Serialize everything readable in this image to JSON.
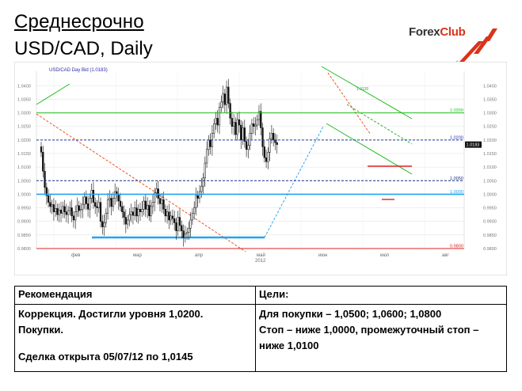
{
  "header": {
    "title": "Среднесрочно",
    "subtitle": "USD/CAD, Daily",
    "logo_text_part1": "Forex",
    "logo_text_part2": "Club"
  },
  "chart_data": {
    "type": "candlestick",
    "title": "USD/CAD Day Bid (1.0183)",
    "last_price": 1.0183,
    "ylim": [
      0.98,
      1.043
    ],
    "y_ticks": [
      1.04,
      1.035,
      1.03,
      1.025,
      1.02,
      1.015,
      1.01,
      1.005,
      1.0,
      0.995,
      0.99,
      0.985,
      0.98
    ],
    "y_tick_labels": [
      "1.0400",
      "1.0350",
      "1.0300",
      "1.0250",
      "1.0200",
      "1.0150",
      "1.0100",
      "1.0050",
      "1.0000",
      "0.9950",
      "0.9900",
      "0.9850",
      "0.9800"
    ],
    "x_labels": [
      "фев",
      "мар",
      "апр",
      "май",
      "июн",
      "июл",
      "авг"
    ],
    "x_label_sub": "2012",
    "levels": [
      {
        "value": 1.03,
        "label": "1.0300",
        "color": "#22bb22"
      },
      {
        "value": 1.02,
        "label": "1.0200",
        "color": "#2233aa"
      },
      {
        "value": 1.005,
        "label": "1.0050",
        "color": "#1b2c8a"
      },
      {
        "value": 1.0,
        "label": "1.0000",
        "color": "#22a4ee"
      },
      {
        "value": 0.98,
        "label": "0.9800",
        "color": "#dd2222"
      }
    ],
    "annotations": [
      "1.0183",
      "1.0120"
    ],
    "closes": [
      1.0155,
      1.0085,
      1.0025,
      0.9995,
      0.997,
      0.9955,
      0.9962,
      0.9935,
      0.9948,
      0.9925,
      0.9942,
      0.993,
      0.9955,
      0.9935,
      0.9925,
      0.994,
      0.995,
      0.992,
      0.9905,
      0.9935,
      0.9958,
      0.994,
      0.9945,
      0.9963,
      0.999,
      0.9965,
      0.9945,
      0.9985,
      1.0015,
      0.997,
      0.9955,
      0.995,
      0.997,
      0.99,
      0.988,
      0.9895,
      0.993,
      0.998,
      0.9985,
      0.9955,
      0.9985,
      1.001,
      1.0,
      0.9975,
      0.9955,
      0.9935,
      0.9915,
      0.989,
      0.9905,
      0.9925,
      0.9935,
      0.9922,
      0.995,
      0.992,
      0.9945,
      0.9935,
      0.9945,
      0.9975,
      0.9945,
      0.996,
      0.992,
      0.9955,
      0.997,
      1.0005,
      1.002,
      0.9985,
      0.9965,
      0.998,
      0.9945,
      0.992,
      0.9935,
      0.9905,
      0.992,
      0.991,
      0.9895,
      0.9865,
      0.9915,
      0.9885,
      0.9865,
      0.984,
      0.9855,
      0.986,
      0.9875,
      0.9905,
      0.993,
      0.995,
      0.9995,
      0.9985,
      1.001,
      1.003,
      1.006,
      1.0115,
      1.0165,
      1.02,
      1.0175,
      1.0225,
      1.026,
      1.028,
      1.0255,
      1.032,
      1.034,
      1.037,
      1.033,
      1.0395,
      1.0335,
      1.028,
      1.025,
      1.0265,
      1.022,
      1.0275,
      1.0255,
      1.02,
      1.0245,
      1.0195,
      1.0165,
      1.018,
      1.0225,
      1.026,
      1.025,
      1.0255,
      1.0275,
      1.0305,
      1.0245,
      1.0175,
      1.0135,
      1.012,
      1.0155,
      1.0205,
      1.0225,
      1.02,
      1.019,
      1.0183
    ]
  },
  "table": {
    "col1_header": "Рекомендация",
    "col2_header": "Цели:",
    "col1_line1": "Коррекция. Достигли уровня 1,0200.",
    "col1_line2": "Покупки.",
    "col1_line3": "Сделка открыта 05/07/12 по 1,0145",
    "col2_line1": "Для покупки – 1,0500; 1,0600; 1,0800",
    "col2_line2": "Стоп – ниже 1,0000, промежуточный стоп –",
    "col2_line3": "ниже 1,0100"
  }
}
